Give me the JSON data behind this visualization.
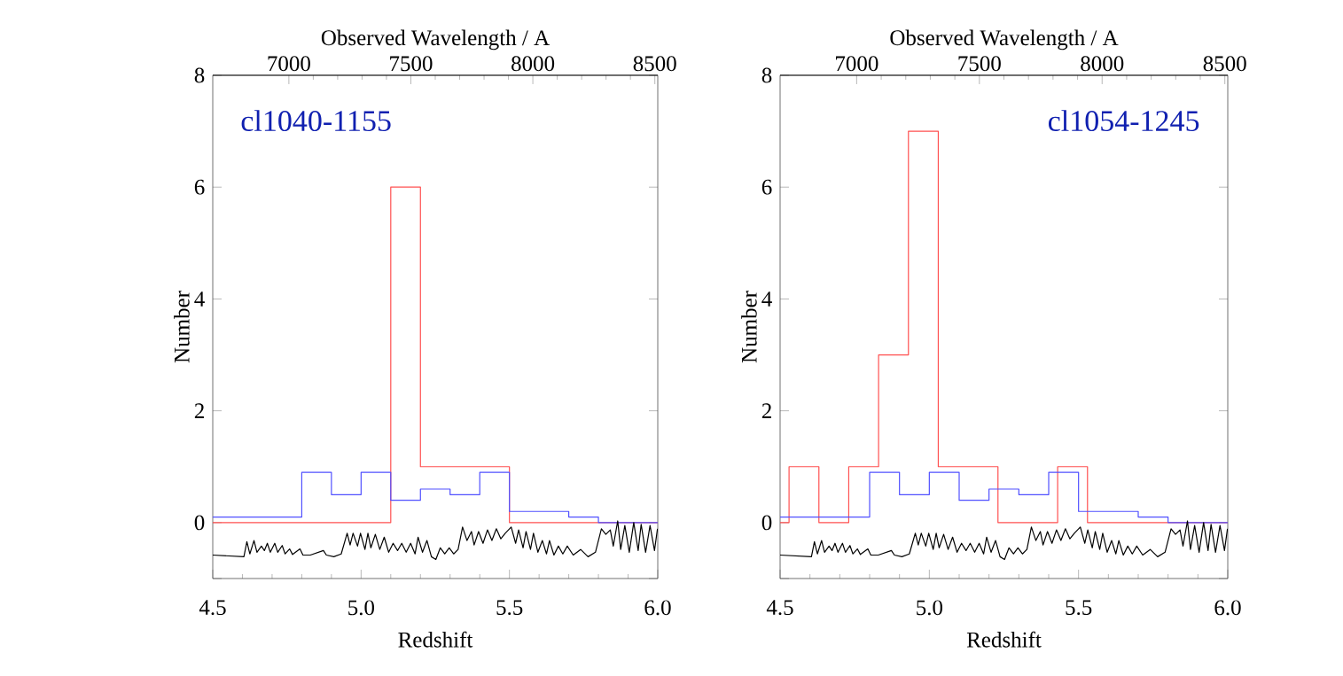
{
  "chart_data": [
    {
      "type": "histogram",
      "xlabel": "Redshift",
      "ylabel": "Number",
      "x2label": "Observed Wavelength / A",
      "annotations": [
        "cl1040-1155"
      ],
      "xlim": [
        4.5,
        6.0
      ],
      "xticks": [
        {
          "value": 4.5,
          "label": "4.5"
        },
        {
          "value": 5,
          "label": "5.0"
        },
        {
          "value": 5.5,
          "label": "5.5"
        },
        {
          "value": 6,
          "label": "6.0"
        }
      ],
      "ylim": [
        -1,
        8
      ],
      "yticks": [
        {
          "value": -1,
          "label": null
        },
        0,
        2,
        4,
        6,
        8
      ],
      "x2lim": [
        6688,
        8512
      ],
      "x2ticks": [
        7000,
        7500,
        8000,
        8500
      ],
      "series": [
        {
          "color": "#ff5050",
          "bins": [
            4.5,
            5.1,
            5.2,
            5.5,
            6.0
          ],
          "values": [
            0,
            6,
            1,
            0
          ]
        },
        {
          "color": "#5050ff",
          "bins": [
            4.5,
            4.8,
            4.9,
            5.0,
            5.1,
            5.2,
            5.3,
            5.4,
            5.5,
            5.7,
            5.8,
            6.0
          ],
          "values": [
            0.1,
            0.9,
            0.5,
            0.9,
            0.4,
            0.6,
            0.5,
            0.9,
            0.2,
            0.1,
            0
          ]
        },
        {
          "type": "line",
          "color": "#000000",
          "x": [
            4.5,
            4.605,
            4.615,
            4.625,
            4.639,
            4.649,
            4.664,
            4.674,
            4.684,
            4.694,
            4.709,
            4.719,
            4.734,
            4.744,
            4.759,
            4.769,
            4.794,
            4.804,
            4.829,
            4.873,
            4.883,
            4.908,
            4.933,
            4.953,
            4.963,
            4.973,
            4.988,
            4.998,
            5.013,
            5.023,
            5.033,
            5.048,
            5.063,
            5.078,
            5.093,
            5.108,
            5.123,
            5.137,
            5.152,
            5.167,
            5.182,
            5.192,
            5.207,
            5.222,
            5.237,
            5.252,
            5.267,
            5.282,
            5.297,
            5.312,
            5.327,
            5.342,
            5.357,
            5.372,
            5.381,
            5.396,
            5.411,
            5.426,
            5.441,
            5.456,
            5.471,
            5.486,
            5.506,
            5.521,
            5.531,
            5.546,
            5.556,
            5.571,
            5.581,
            5.596,
            5.611,
            5.625,
            5.635,
            5.65,
            5.665,
            5.68,
            5.695,
            5.715,
            5.74,
            5.765,
            5.79,
            5.81,
            5.825,
            5.84,
            5.85,
            5.865,
            5.875,
            5.889,
            5.904,
            5.919,
            5.934,
            5.944,
            5.959,
            5.974,
            5.989,
            5.999
          ],
          "values": [
            -0.58,
            -0.61,
            -0.34,
            -0.56,
            -0.32,
            -0.53,
            -0.42,
            -0.5,
            -0.37,
            -0.53,
            -0.37,
            -0.53,
            -0.41,
            -0.56,
            -0.47,
            -0.57,
            -0.47,
            -0.58,
            -0.58,
            -0.5,
            -0.58,
            -0.61,
            -0.56,
            -0.19,
            -0.4,
            -0.19,
            -0.42,
            -0.19,
            -0.48,
            -0.19,
            -0.45,
            -0.21,
            -0.48,
            -0.26,
            -0.53,
            -0.37,
            -0.5,
            -0.37,
            -0.53,
            -0.37,
            -0.56,
            -0.26,
            -0.53,
            -0.32,
            -0.61,
            -0.66,
            -0.45,
            -0.56,
            -0.45,
            -0.56,
            -0.48,
            -0.08,
            -0.32,
            -0.16,
            -0.4,
            -0.16,
            -0.37,
            -0.13,
            -0.32,
            -0.11,
            -0.29,
            -0.19,
            -0.08,
            -0.37,
            -0.13,
            -0.45,
            -0.16,
            -0.48,
            -0.19,
            -0.53,
            -0.32,
            -0.56,
            -0.32,
            -0.58,
            -0.42,
            -0.56,
            -0.42,
            -0.58,
            -0.48,
            -0.61,
            -0.53,
            -0.11,
            -0.21,
            -0.13,
            -0.42,
            0.03,
            -0.48,
            -0.05,
            -0.53,
            0.0,
            -0.5,
            -0.03,
            -0.53,
            -0.05,
            -0.5,
            -0.11
          ]
        }
      ]
    },
    {
      "type": "histogram",
      "xlabel": "Redshift",
      "ylabel": "Number",
      "x2label": "Observed Wavelength / A",
      "annotations": [
        "cl1054-1245"
      ],
      "xlim": [
        4.5,
        6.0
      ],
      "xticks": [
        {
          "value": 4.5,
          "label": "4.5"
        },
        {
          "value": 5,
          "label": "5.0"
        },
        {
          "value": 5.5,
          "label": "5.5"
        },
        {
          "value": 6,
          "label": "6.0"
        }
      ],
      "ylim": [
        -1,
        8
      ],
      "yticks": [
        {
          "value": -1,
          "label": null
        },
        0,
        2,
        4,
        6,
        8
      ],
      "x2lim": [
        6688,
        8512
      ],
      "x2ticks": [
        7000,
        7500,
        8000,
        8500
      ],
      "series": [
        {
          "color": "#ff5050",
          "bins": [
            4.5,
            4.53,
            4.63,
            4.73,
            4.83,
            4.93,
            5.03,
            5.13,
            5.23,
            5.33,
            5.43,
            5.53,
            6.0
          ],
          "values": [
            0,
            1,
            0,
            1,
            3,
            7,
            1,
            1,
            0,
            0,
            1,
            0
          ]
        },
        {
          "color": "#5050ff",
          "bins": [
            4.5,
            4.8,
            4.9,
            5.0,
            5.1,
            5.2,
            5.3,
            5.4,
            5.5,
            5.7,
            5.8,
            6.0
          ],
          "values": [
            0.1,
            0.9,
            0.5,
            0.9,
            0.4,
            0.6,
            0.5,
            0.9,
            0.2,
            0.1,
            0
          ]
        },
        {
          "type": "line",
          "color": "#000000",
          "x": [
            4.5,
            4.605,
            4.615,
            4.625,
            4.639,
            4.649,
            4.664,
            4.674,
            4.684,
            4.694,
            4.709,
            4.719,
            4.734,
            4.744,
            4.759,
            4.769,
            4.794,
            4.804,
            4.829,
            4.873,
            4.883,
            4.908,
            4.933,
            4.953,
            4.963,
            4.973,
            4.988,
            4.998,
            5.013,
            5.023,
            5.033,
            5.048,
            5.063,
            5.078,
            5.093,
            5.108,
            5.123,
            5.137,
            5.152,
            5.167,
            5.182,
            5.192,
            5.207,
            5.222,
            5.237,
            5.252,
            5.267,
            5.282,
            5.297,
            5.312,
            5.327,
            5.342,
            5.357,
            5.372,
            5.381,
            5.396,
            5.411,
            5.426,
            5.441,
            5.456,
            5.471,
            5.486,
            5.506,
            5.521,
            5.531,
            5.546,
            5.556,
            5.571,
            5.581,
            5.596,
            5.611,
            5.625,
            5.635,
            5.65,
            5.665,
            5.68,
            5.695,
            5.715,
            5.74,
            5.765,
            5.79,
            5.81,
            5.825,
            5.84,
            5.85,
            5.865,
            5.875,
            5.889,
            5.904,
            5.919,
            5.934,
            5.944,
            5.959,
            5.974,
            5.989,
            5.999
          ],
          "values": [
            -0.58,
            -0.61,
            -0.34,
            -0.56,
            -0.32,
            -0.53,
            -0.42,
            -0.5,
            -0.37,
            -0.53,
            -0.37,
            -0.53,
            -0.41,
            -0.56,
            -0.47,
            -0.57,
            -0.47,
            -0.58,
            -0.58,
            -0.5,
            -0.58,
            -0.61,
            -0.56,
            -0.19,
            -0.4,
            -0.19,
            -0.42,
            -0.19,
            -0.48,
            -0.19,
            -0.45,
            -0.21,
            -0.48,
            -0.26,
            -0.53,
            -0.37,
            -0.5,
            -0.37,
            -0.53,
            -0.37,
            -0.56,
            -0.26,
            -0.53,
            -0.32,
            -0.61,
            -0.66,
            -0.45,
            -0.56,
            -0.45,
            -0.56,
            -0.48,
            -0.08,
            -0.32,
            -0.16,
            -0.4,
            -0.16,
            -0.37,
            -0.13,
            -0.32,
            -0.11,
            -0.29,
            -0.19,
            -0.08,
            -0.37,
            -0.13,
            -0.45,
            -0.16,
            -0.48,
            -0.19,
            -0.53,
            -0.32,
            -0.56,
            -0.32,
            -0.58,
            -0.42,
            -0.56,
            -0.42,
            -0.58,
            -0.48,
            -0.61,
            -0.53,
            -0.11,
            -0.21,
            -0.13,
            -0.42,
            0.03,
            -0.48,
            -0.05,
            -0.53,
            0.0,
            -0.5,
            -0.03,
            -0.53,
            -0.05,
            -0.5,
            -0.11
          ]
        }
      ]
    }
  ]
}
